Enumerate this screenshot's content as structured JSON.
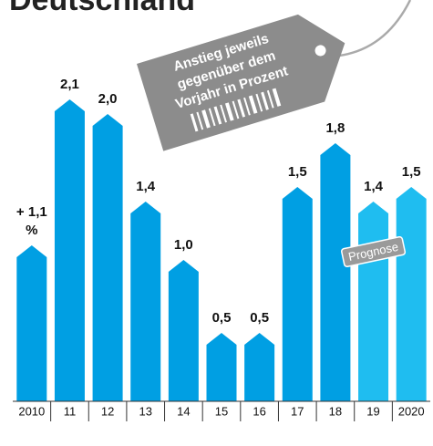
{
  "chart_data": {
    "type": "bar",
    "title": "Deutschland",
    "categories": [
      "2010",
      "11",
      "12",
      "13",
      "14",
      "15",
      "16",
      "17",
      "18",
      "19",
      "2020"
    ],
    "values": [
      1.1,
      2.1,
      2.0,
      1.4,
      1.0,
      0.5,
      0.5,
      1.5,
      1.8,
      1.4,
      1.5
    ],
    "value_labels": [
      "+ 1,1 %",
      "2,1",
      "2,0",
      "1,4",
      "1,0",
      "0,5",
      "0,5",
      "1,5",
      "1,8",
      "1,4",
      "1,5"
    ],
    "colors": [
      "#009fe3",
      "#009fe3",
      "#009fe3",
      "#009fe3",
      "#009fe3",
      "#009fe3",
      "#009fe3",
      "#009fe3",
      "#009fe3",
      "#1fbdf0",
      "#1fbdf0"
    ],
    "ylim": [
      0,
      2.6
    ],
    "tag_lines": [
      "Anstieg jeweils",
      "gegenüber dem",
      "Vorjahr in Prozent"
    ],
    "annotation": "Prognose"
  }
}
